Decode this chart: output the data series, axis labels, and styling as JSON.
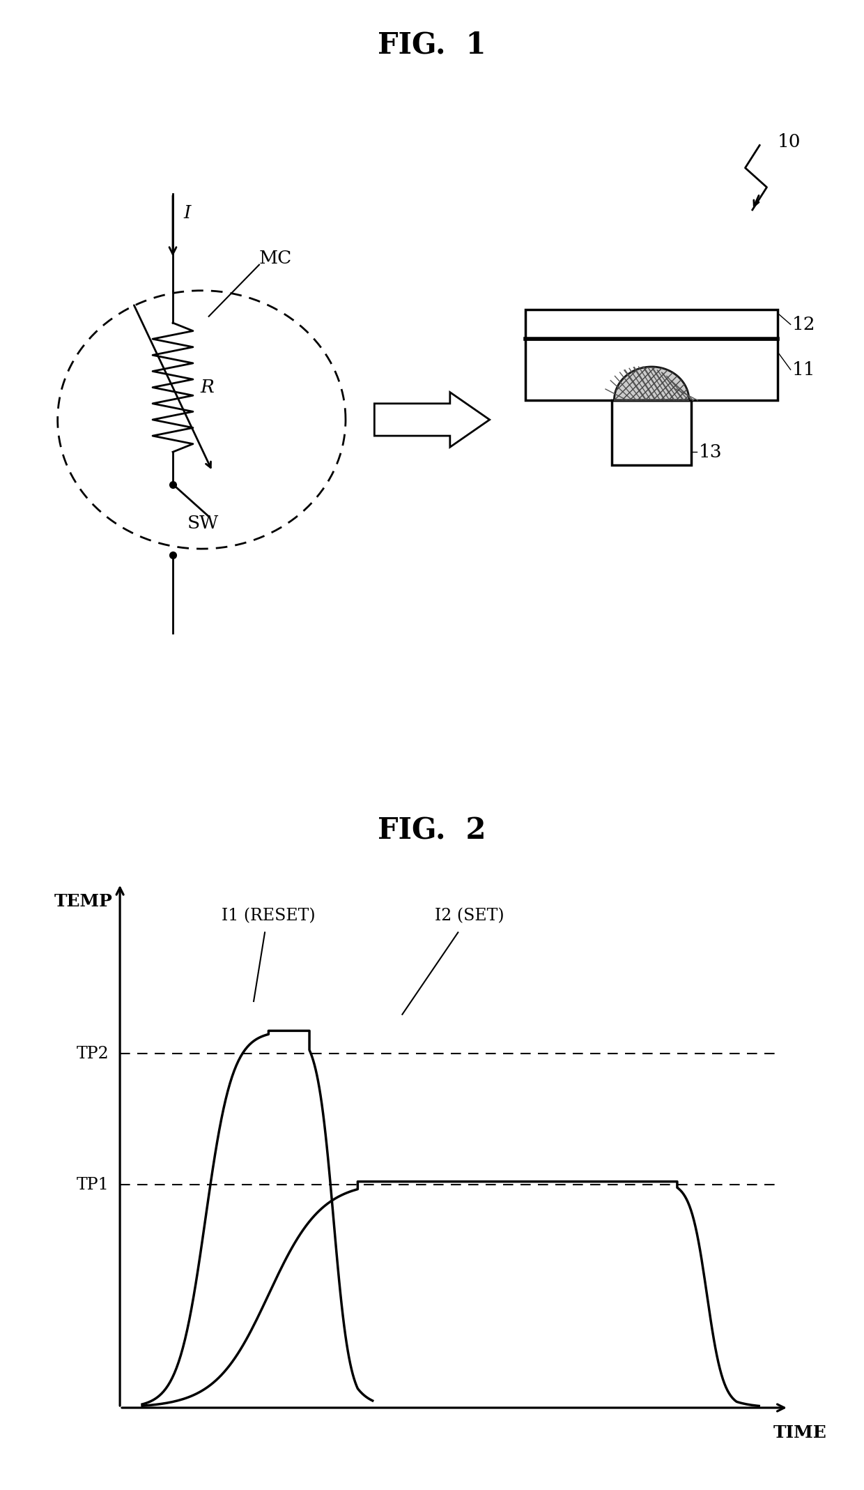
{
  "fig1_title": "FIG.  1",
  "fig2_title": "FIG.  2",
  "label_10": "10",
  "label_11": "11",
  "label_12": "12",
  "label_13": "13",
  "label_MC": "MC",
  "label_R": "R",
  "label_SW": "SW",
  "label_I": "I",
  "label_TEMP": "TEMP",
  "label_TIME": "TIME",
  "label_TP1": "TP1",
  "label_TP2": "TP2",
  "label_I1": "I1 (RESET)",
  "label_I2": "I2 (SET)",
  "bg_color": "#ffffff",
  "line_color": "#000000"
}
